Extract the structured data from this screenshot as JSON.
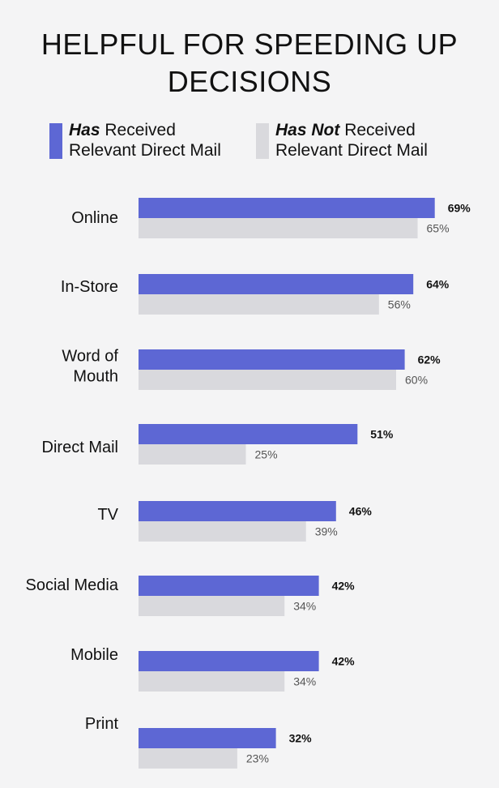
{
  "chart_data": {
    "type": "bar",
    "orientation": "horizontal",
    "title_lines": [
      "HELPFUL FOR SPEEDING UP",
      "DECISIONS"
    ],
    "categories": [
      [
        "Online"
      ],
      [
        "In-Store"
      ],
      [
        "Word of",
        "Mouth"
      ],
      [
        "Direct Mail"
      ],
      [
        "TV"
      ],
      [
        "Social Media"
      ],
      [
        "Mobile"
      ],
      [
        "Print"
      ]
    ],
    "series": [
      {
        "name_bold": "Has",
        "name_rest": " Received",
        "name_line2": "Relevant Direct Mail",
        "color": "#5d67d4",
        "values": [
          69,
          64,
          62,
          51,
          46,
          42,
          42,
          32
        ],
        "labels": [
          "69%",
          "64%",
          "62%",
          "51%",
          "46%",
          "42%",
          "42%",
          "32%"
        ]
      },
      {
        "name_bold": "Has Not",
        "name_rest": " Received",
        "name_line2": "Relevant Direct Mail",
        "color": "#d9d9dd",
        "values": [
          65,
          56,
          60,
          25,
          39,
          34,
          34,
          23
        ],
        "labels": [
          "65%",
          "56%",
          "60%",
          "25%",
          "39%",
          "34%",
          "34%",
          "23%"
        ]
      }
    ],
    "xlim": [
      0,
      100
    ],
    "grid": false,
    "legend_position": "top"
  }
}
